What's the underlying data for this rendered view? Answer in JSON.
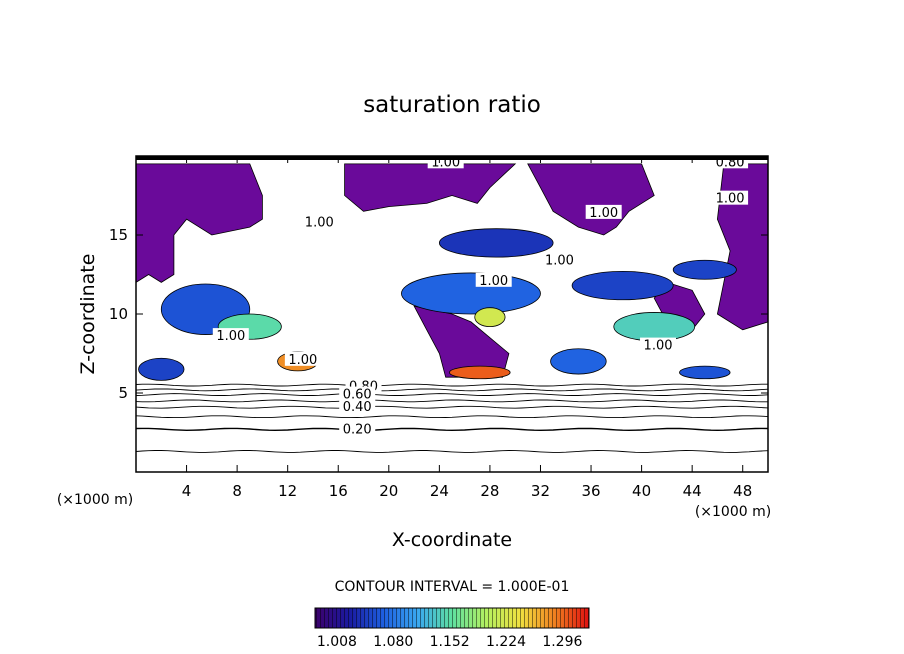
{
  "chart_data": {
    "type": "heatmap",
    "title": "saturation ratio",
    "xlabel": "X-coordinate",
    "ylabel": "Z-coordinate",
    "x_unit_left": "(×1000 m)",
    "x_unit_right": "(×1000 m)",
    "xlim": [
      0,
      50
    ],
    "ylim": [
      0,
      20
    ],
    "x_ticks": [
      4,
      8,
      12,
      16,
      20,
      24,
      28,
      32,
      36,
      40,
      44,
      48
    ],
    "x_tick_labels": [
      "4",
      "8",
      "12",
      "16",
      "20",
      "24",
      "28",
      "32",
      "36",
      "40",
      "44",
      "48"
    ],
    "y_ticks": [
      5,
      10,
      15
    ],
    "y_tick_labels": [
      "5",
      "10",
      "15"
    ],
    "contour_interval_text": "CONTOUR INTERVAL = 1.000E-01",
    "colorbar": {
      "ticks": [
        1.008,
        1.08,
        1.152,
        1.224,
        1.296
      ],
      "tick_labels": [
        "1.008",
        "1.080",
        "1.152",
        "1.224",
        "1.296"
      ],
      "min": 0.98,
      "max": 1.33,
      "colors": [
        "#3d006b",
        "#1a1aa0",
        "#1e5fe0",
        "#3aa8f0",
        "#5fe0a0",
        "#b4f060",
        "#f0e040",
        "#f08020",
        "#e01010"
      ]
    },
    "subsaturated_color": "#6a0a9a",
    "contour_labels": [
      {
        "text": "1.00",
        "x": 24.5,
        "y": 19.6
      },
      {
        "text": "0.80",
        "x": 47.0,
        "y": 19.6
      },
      {
        "text": "1.00",
        "x": 47.0,
        "y": 17.3
      },
      {
        "text": "1.00",
        "x": 37.0,
        "y": 16.4
      },
      {
        "text": "1.00",
        "x": 14.5,
        "y": 15.8
      },
      {
        "text": "1.00",
        "x": 33.5,
        "y": 13.4
      },
      {
        "text": "1.00",
        "x": 28.3,
        "y": 12.1
      },
      {
        "text": "1.00",
        "x": 7.5,
        "y": 8.6
      },
      {
        "text": "1.00",
        "x": 41.3,
        "y": 8.0
      },
      {
        "text": "1.00",
        "x": 13.2,
        "y": 7.1
      },
      {
        "text": "0.80",
        "x": 18.0,
        "y": 5.4
      },
      {
        "text": "0.60",
        "x": 17.5,
        "y": 4.9
      },
      {
        "text": "0.40",
        "x": 17.5,
        "y": 4.1
      },
      {
        "text": "0.20",
        "x": 17.5,
        "y": 2.7
      }
    ],
    "ambient_contours": [
      {
        "level": 0.1,
        "z": 1.3
      },
      {
        "level": 0.2,
        "z": 2.7
      },
      {
        "level": 0.3,
        "z": 3.5
      },
      {
        "level": 0.4,
        "z": 4.1
      },
      {
        "level": 0.5,
        "z": 4.5
      },
      {
        "level": 0.6,
        "z": 4.9
      },
      {
        "level": 0.7,
        "z": 5.2
      },
      {
        "level": 0.8,
        "z": 5.5
      }
    ],
    "subsaturated_regions": [
      {
        "name": "upper-left",
        "points": [
          [
            0,
            19.5
          ],
          [
            0,
            12
          ],
          [
            1,
            12.5
          ],
          [
            2,
            12
          ],
          [
            3,
            12.5
          ],
          [
            3,
            15
          ],
          [
            4,
            16
          ],
          [
            6,
            15
          ],
          [
            9,
            15.5
          ],
          [
            10,
            16
          ],
          [
            10,
            17.5
          ],
          [
            9,
            19.5
          ]
        ]
      },
      {
        "name": "upper-mid-left",
        "points": [
          [
            16.5,
            19.5
          ],
          [
            16.5,
            17.5
          ],
          [
            18,
            16.5
          ],
          [
            20,
            16.8
          ],
          [
            23,
            17
          ],
          [
            25,
            17.5
          ],
          [
            27,
            17
          ],
          [
            28,
            18
          ],
          [
            30,
            19.5
          ]
        ]
      },
      {
        "name": "upper-right",
        "points": [
          [
            31,
            19.5
          ],
          [
            32,
            18
          ],
          [
            33,
            16.5
          ],
          [
            35,
            15.5
          ],
          [
            37,
            15
          ],
          [
            38,
            15.5
          ],
          [
            39,
            16.5
          ],
          [
            41,
            17.5
          ],
          [
            40,
            19.5
          ]
        ]
      },
      {
        "name": "right-edge",
        "points": [
          [
            46.5,
            19.5
          ],
          [
            46,
            16
          ],
          [
            47,
            14
          ],
          [
            46.5,
            12
          ],
          [
            46,
            10
          ],
          [
            48,
            9
          ],
          [
            50,
            9.5
          ],
          [
            50,
            19.5
          ]
        ]
      },
      {
        "name": "mid-plume",
        "points": [
          [
            22,
            10.5
          ],
          [
            23,
            9
          ],
          [
            24,
            7.5
          ],
          [
            24.5,
            6
          ],
          [
            29,
            6
          ],
          [
            29.5,
            7.5
          ],
          [
            28,
            8.5
          ],
          [
            26.5,
            9.5
          ],
          [
            25,
            10
          ]
        ]
      },
      {
        "name": "right-plume",
        "points": [
          [
            42,
            12
          ],
          [
            44,
            11.5
          ],
          [
            45,
            10
          ],
          [
            44,
            9
          ],
          [
            42,
            9.5
          ],
          [
            41,
            11
          ]
        ]
      }
    ],
    "supersaturated_patches": [
      {
        "name": "band-left",
        "x": 5.5,
        "z": 10.3,
        "rx": 3.5,
        "rz": 1.6,
        "value": 1.06
      },
      {
        "name": "band-left-core",
        "x": 9.0,
        "z": 9.2,
        "rx": 2.5,
        "rz": 0.8,
        "value": 1.15
      },
      {
        "name": "left-low",
        "x": 2.0,
        "z": 6.5,
        "rx": 1.8,
        "rz": 0.7,
        "value": 1.05
      },
      {
        "name": "hotspot-12km",
        "x": 12.8,
        "z": 7.0,
        "rx": 1.6,
        "rz": 0.6,
        "value": 1.28
      },
      {
        "name": "mid-band",
        "x": 26.5,
        "z": 11.3,
        "rx": 5.5,
        "rz": 1.3,
        "value": 1.07
      },
      {
        "name": "mid-core",
        "x": 28.0,
        "z": 9.8,
        "rx": 1.2,
        "rz": 0.6,
        "value": 1.22
      },
      {
        "name": "upper-band",
        "x": 28.5,
        "z": 14.5,
        "rx": 4.5,
        "rz": 0.9,
        "value": 1.04
      },
      {
        "name": "surface-28km",
        "x": 27.2,
        "z": 6.3,
        "rx": 2.4,
        "rz": 0.4,
        "value": 1.3
      },
      {
        "name": "right-band",
        "x": 38.5,
        "z": 11.8,
        "rx": 4.0,
        "rz": 0.9,
        "value": 1.05
      },
      {
        "name": "right-core",
        "x": 41.0,
        "z": 9.2,
        "rx": 3.2,
        "rz": 0.9,
        "value": 1.14
      },
      {
        "name": "right-low",
        "x": 35.0,
        "z": 7.0,
        "rx": 2.2,
        "rz": 0.8,
        "value": 1.07
      },
      {
        "name": "right-surface",
        "x": 45.0,
        "z": 6.3,
        "rx": 2.0,
        "rz": 0.4,
        "value": 1.06
      },
      {
        "name": "upper-right-band",
        "x": 45.0,
        "z": 12.8,
        "rx": 2.5,
        "rz": 0.6,
        "value": 1.05
      }
    ]
  }
}
